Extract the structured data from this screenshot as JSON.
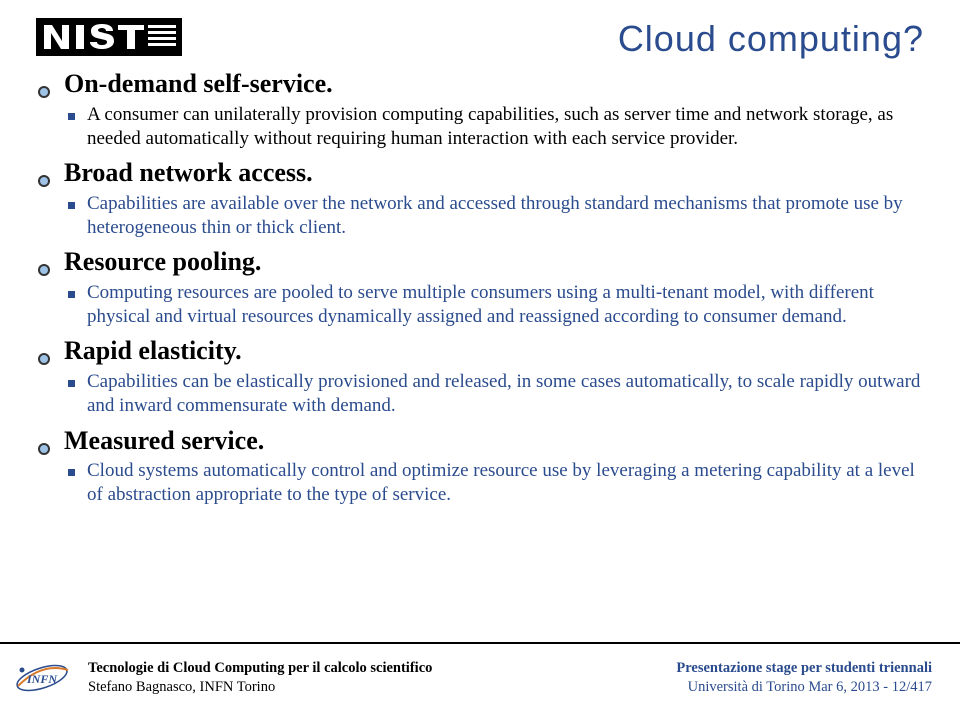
{
  "title": {
    "text": "Cloud computing?",
    "color": "#2a4b8d"
  },
  "items": [
    {
      "level": 1,
      "text": "On-demand self-service.",
      "color": "#000000"
    },
    {
      "level": 2,
      "text": "A consumer can unilaterally provision computing capabilities, such as server time and network storage, as needed automatically without requiring human interaction with each service provider.",
      "color": "#000000"
    },
    {
      "level": 1,
      "text": "Broad network access.",
      "color": "#000000"
    },
    {
      "level": 2,
      "text": "Capabilities are available over the network and accessed through standard mechanisms that promote use by heterogeneous thin or thick client.",
      "color": "#2a4b8d"
    },
    {
      "level": 1,
      "text": "Resource pooling.",
      "color": "#000000"
    },
    {
      "level": 2,
      "text": "Computing resources are pooled to serve multiple consumers using a multi-tenant model, with different physical and virtual resources dynamically assigned and reassigned according to consumer demand.",
      "color": "#2a4b8d"
    },
    {
      "level": 1,
      "text": "Rapid elasticity.",
      "color": "#000000"
    },
    {
      "level": 2,
      "text": "Capabilities can be elastically provisioned and released, in some cases automatically, to scale rapidly outward and inward commensurate with demand.",
      "color": "#2a4b8d"
    },
    {
      "level": 1,
      "text": "Measured service.",
      "color": "#000000"
    },
    {
      "level": 2,
      "text": "Cloud systems automatically control and optimize resource use by leveraging a metering capability at a level of abstraction appropriate to the type of service.",
      "color": "#2a4b8d"
    }
  ],
  "bulletColors": {
    "h1_border": "#333333",
    "h1_fill": "#9ec3e6",
    "h2_fill": "#2a4b8d"
  },
  "footer": {
    "left_line1": "Tecnologie di Cloud Computing per il calcolo scientifico",
    "left_line2": "Stefano Bagnasco, INFN Torino",
    "right_line1": "Presentazione stage per studenti triennali",
    "right_line2": "Università di Torino Mar 6, 2013 - 12/417",
    "right_color": "#2a4b8d"
  },
  "logos": {
    "nist_black": "#000000",
    "nist_white": "#ffffff",
    "infn_blue": "#2a4b8d",
    "infn_orange": "#d97a2a"
  }
}
